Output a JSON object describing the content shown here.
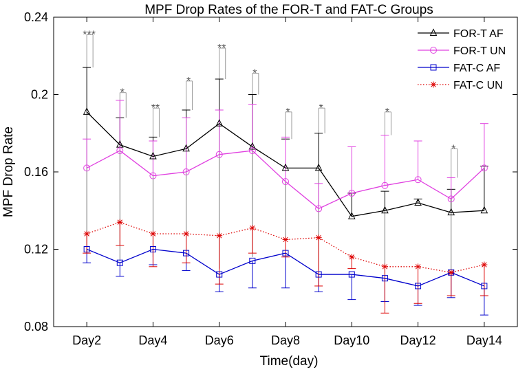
{
  "chart_data": {
    "type": "line",
    "title": "MPF Drop Rates of the FOR-T and FAT-C Groups",
    "xlabel": "Time(day)",
    "ylabel": "MPF Drop Rate",
    "x": [
      2,
      3,
      4,
      5,
      6,
      7,
      8,
      9,
      10,
      11,
      12,
      13,
      14
    ],
    "xlim": [
      1,
      15
    ],
    "xticks": [
      2,
      4,
      6,
      8,
      10,
      12,
      14
    ],
    "xtick_labels": [
      "Day2",
      "Day4",
      "Day6",
      "Day8",
      "Day10",
      "Day12",
      "Day14"
    ],
    "ylim": [
      0.08,
      0.24
    ],
    "yticks": [
      0.08,
      0.12,
      0.16,
      0.2,
      0.24
    ],
    "ytick_labels": [
      "0.08",
      "0.12",
      "0.16",
      "0.2",
      "0.24"
    ],
    "legend_position": "top-right",
    "series": [
      {
        "name": "FOR-T AF",
        "color": "#000000",
        "marker": "triangle",
        "line": "solid",
        "values": [
          0.191,
          0.174,
          0.168,
          0.172,
          0.185,
          0.173,
          0.162,
          0.162,
          0.137,
          0.14,
          0.144,
          0.139,
          0.14
        ],
        "upper": [
          0.214,
          0.188,
          0.178,
          0.192,
          0.208,
          0.2,
          0.177,
          0.18,
          0.149,
          0.15,
          0.146,
          0.151,
          0.163
        ],
        "lower": [
          0.118,
          0.114,
          0.116,
          0.119,
          0.11,
          0.116,
          0.118,
          0.109,
          0.137,
          0.092,
          0.144,
          0.106,
          0.14
        ],
        "upper_only": [
          false,
          false,
          false,
          false,
          false,
          false,
          false,
          false,
          true,
          false,
          true,
          false,
          true
        ]
      },
      {
        "name": "FOR-T UN",
        "color": "#e040e0",
        "marker": "circle",
        "line": "solid",
        "values": [
          0.162,
          0.171,
          0.158,
          0.16,
          0.169,
          0.171,
          0.155,
          0.141,
          0.149,
          0.153,
          0.156,
          0.146,
          0.162
        ],
        "upper": [
          0.177,
          0.197,
          0.176,
          0.188,
          0.192,
          0.195,
          0.178,
          0.154,
          0.173,
          0.179,
          0.176,
          0.157,
          0.185
        ],
        "upper_only": [
          true,
          true,
          true,
          true,
          true,
          true,
          true,
          true,
          true,
          true,
          true,
          true,
          true
        ]
      },
      {
        "name": "FAT-C AF",
        "color": "#0000cc",
        "marker": "square",
        "line": "solid",
        "values": [
          0.12,
          0.113,
          0.12,
          0.118,
          0.107,
          0.114,
          0.118,
          0.107,
          0.107,
          0.105,
          0.101,
          0.108,
          0.101
        ],
        "lower": [
          0.113,
          0.106,
          0.112,
          0.109,
          0.098,
          0.1,
          0.1,
          0.098,
          0.094,
          0.093,
          0.091,
          0.095,
          0.086
        ],
        "lower_only": [
          true,
          true,
          true,
          true,
          true,
          true,
          true,
          true,
          true,
          true,
          true,
          true,
          true
        ]
      },
      {
        "name": "FAT-C UN",
        "color": "#dd0000",
        "marker": "asterisk",
        "line": "dotted",
        "values": [
          0.128,
          0.134,
          0.128,
          0.128,
          0.127,
          0.131,
          0.125,
          0.126,
          0.116,
          0.111,
          0.111,
          0.108,
          0.112
        ],
        "lower": [
          0.118,
          0.122,
          0.111,
          0.113,
          0.102,
          0.118,
          0.116,
          0.101,
          0.11,
          0.087,
          0.092,
          0.096,
          0.096
        ],
        "lower_only": [
          true,
          true,
          true,
          true,
          true,
          true,
          true,
          true,
          true,
          true,
          true,
          true,
          true
        ]
      }
    ],
    "significance": [
      {
        "x": 2,
        "label": "***",
        "y_top": 0.231,
        "y_bottom": 0.214
      },
      {
        "x": 3,
        "label": "*",
        "y_top": 0.201,
        "y_bottom": 0.188
      },
      {
        "x": 4,
        "label": "**",
        "y_top": 0.193,
        "y_bottom": 0.178
      },
      {
        "x": 5,
        "label": "*",
        "y_top": 0.207,
        "y_bottom": 0.192
      },
      {
        "x": 6,
        "label": "**",
        "y_top": 0.224,
        "y_bottom": 0.208
      },
      {
        "x": 7,
        "label": "*",
        "y_top": 0.211,
        "y_bottom": 0.2
      },
      {
        "x": 8,
        "label": "*",
        "y_top": 0.191,
        "y_bottom": 0.177
      },
      {
        "x": 9,
        "label": "*",
        "y_top": 0.193,
        "y_bottom": 0.18
      },
      {
        "x": 11,
        "label": "*",
        "y_top": 0.191,
        "y_bottom": 0.179
      },
      {
        "x": 13,
        "label": "*",
        "y_top": 0.172,
        "y_bottom": 0.157
      }
    ]
  }
}
